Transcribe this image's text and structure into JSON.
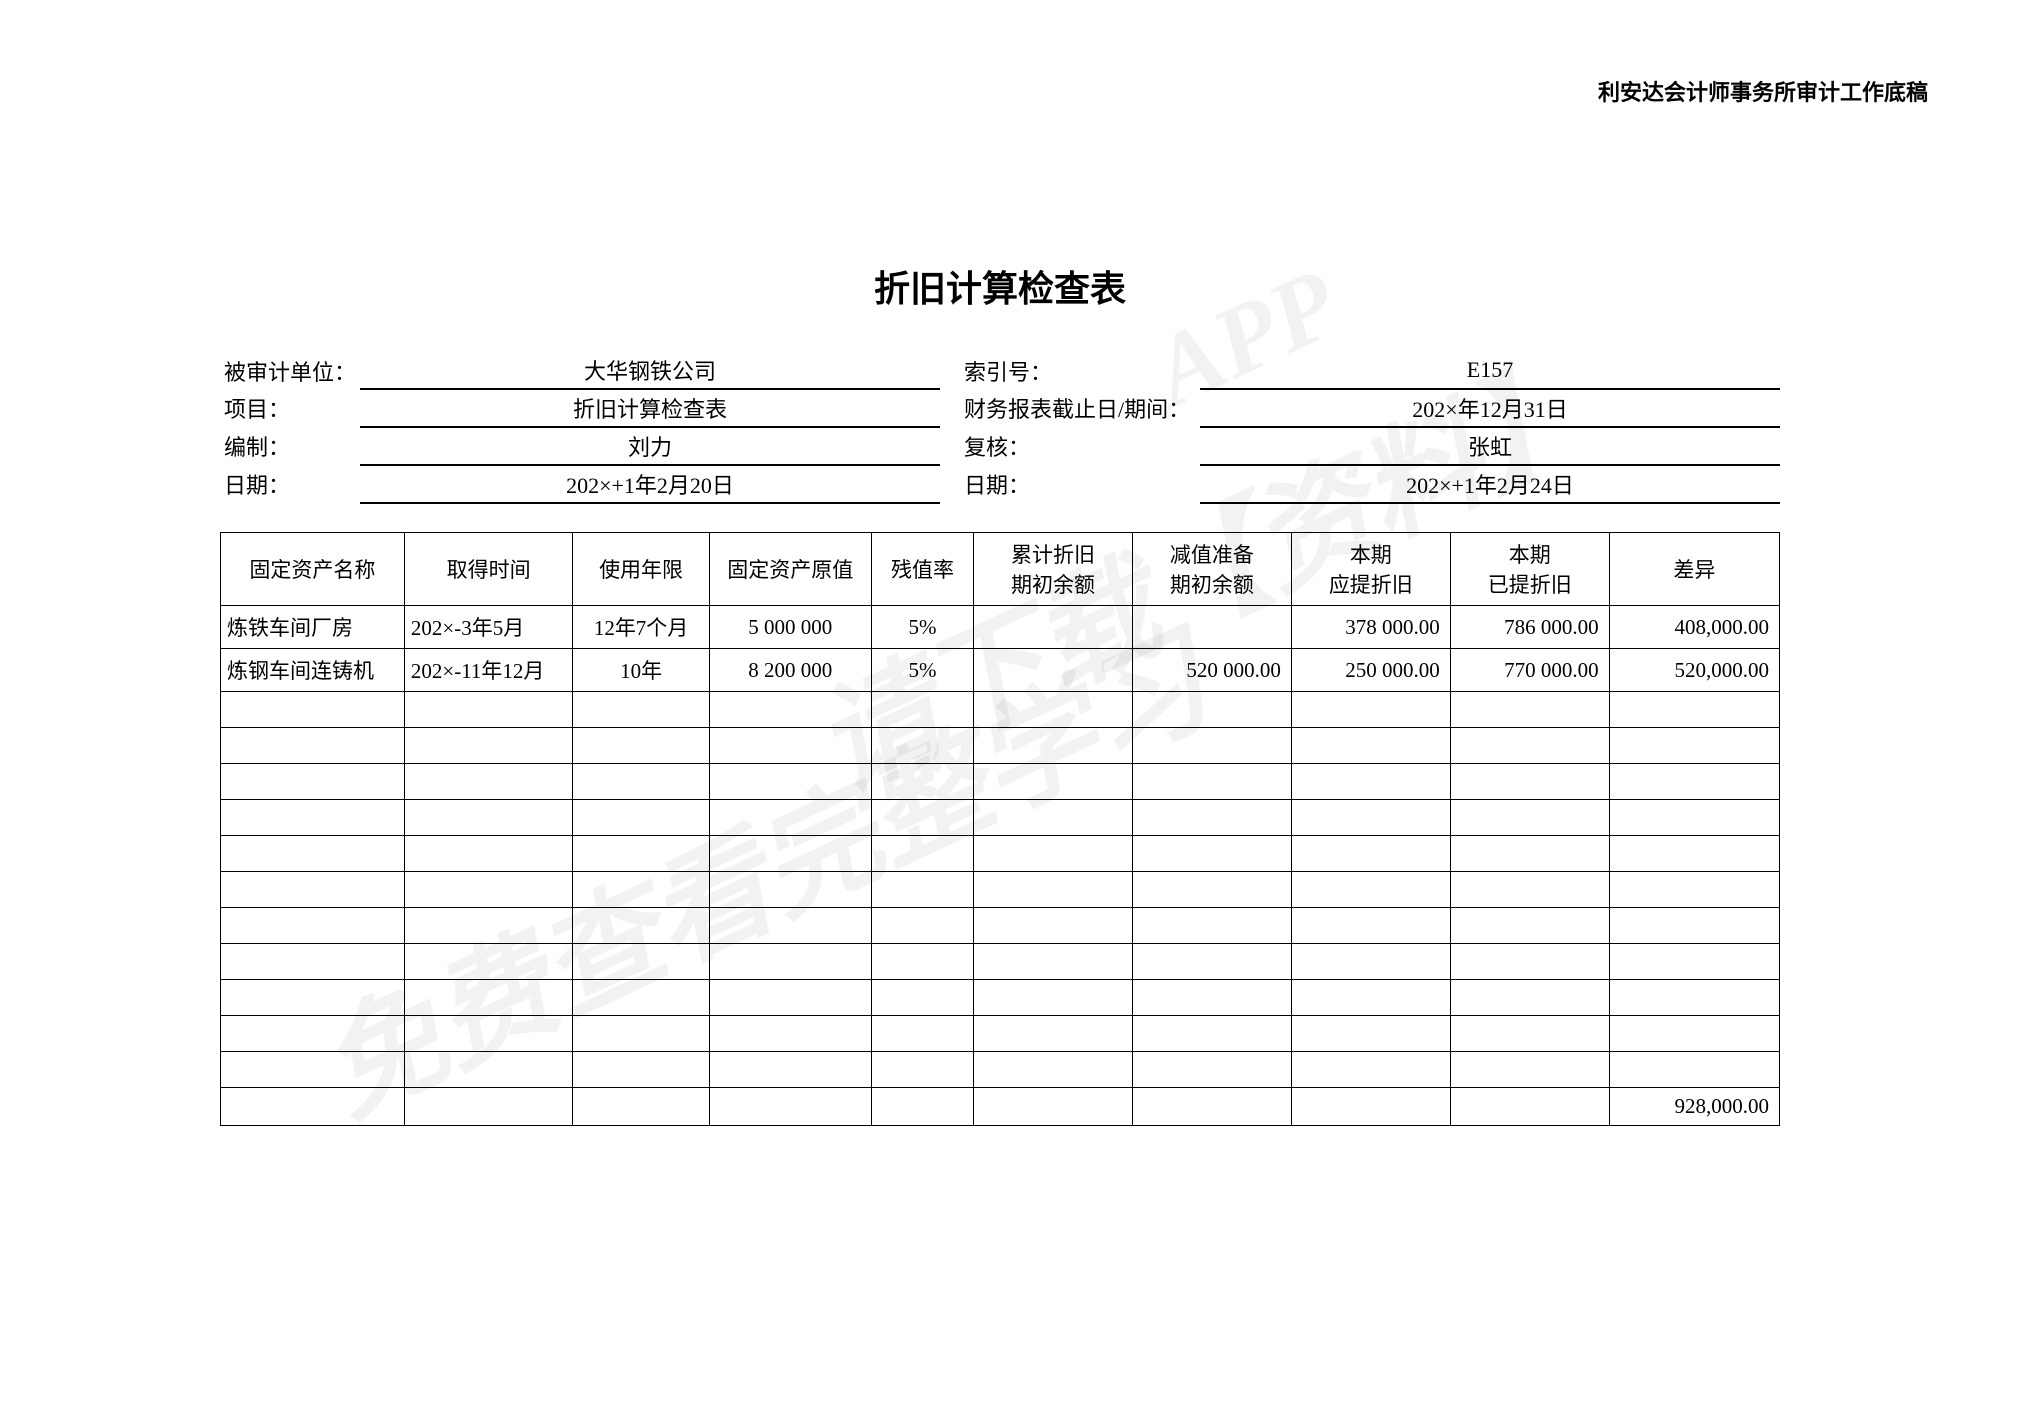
{
  "header_right": "利安达会计师事务所审计工作底稿",
  "title": "折旧计算检查表",
  "meta": {
    "rows": [
      {
        "l_label": "被审计单位：",
        "l_value": "大华钢铁公司",
        "r_label": "索引号：",
        "r_value": "E157"
      },
      {
        "l_label": "项目：",
        "l_value": "折旧计算检查表",
        "r_label": "财务报表截止日/期间：",
        "r_value": "202×年12月31日"
      },
      {
        "l_label": "编制：",
        "l_value": "刘力",
        "r_label": "复核：",
        "r_value": "张虹"
      },
      {
        "l_label": "日期：",
        "l_value": "202×+1年2月20日",
        "r_label": "日期：",
        "r_value": "202×+1年2月24日"
      }
    ]
  },
  "table": {
    "columns": [
      "固定资产名称",
      "取得时间",
      "使用年限",
      "固定资产原值",
      "残值率",
      "累计折旧\n期初余额",
      "减值准备\n期初余额",
      "本期\n应提折旧",
      "本期\n已提折旧",
      "差异"
    ],
    "rows": [
      {
        "name": "炼铁车间厂房",
        "acq": "202×-3年5月",
        "life": "12年7个月",
        "cost": "5 000 000",
        "rate": "5%",
        "accdep": "",
        "impair": "",
        "should": "378 000.00",
        "actual": "786 000.00",
        "diff": "408,000.00"
      },
      {
        "name": "炼钢车间连铸机",
        "acq": "202×-11年12月",
        "life": "10年",
        "cost": "8 200 000",
        "rate": "5%",
        "accdep": "",
        "impair": "520 000.00",
        "should": "250 000.00",
        "actual": "770 000.00",
        "diff": "520,000.00"
      },
      {
        "name": "",
        "acq": "",
        "life": "",
        "cost": "",
        "rate": "",
        "accdep": "",
        "impair": "",
        "should": "",
        "actual": "",
        "diff": ""
      },
      {
        "name": "",
        "acq": "",
        "life": "",
        "cost": "",
        "rate": "",
        "accdep": "",
        "impair": "",
        "should": "",
        "actual": "",
        "diff": ""
      },
      {
        "name": "",
        "acq": "",
        "life": "",
        "cost": "",
        "rate": "",
        "accdep": "",
        "impair": "",
        "should": "",
        "actual": "",
        "diff": ""
      },
      {
        "name": "",
        "acq": "",
        "life": "",
        "cost": "",
        "rate": "",
        "accdep": "",
        "impair": "",
        "should": "",
        "actual": "",
        "diff": ""
      },
      {
        "name": "",
        "acq": "",
        "life": "",
        "cost": "",
        "rate": "",
        "accdep": "",
        "impair": "",
        "should": "",
        "actual": "",
        "diff": ""
      },
      {
        "name": "",
        "acq": "",
        "life": "",
        "cost": "",
        "rate": "",
        "accdep": "",
        "impair": "",
        "should": "",
        "actual": "",
        "diff": ""
      },
      {
        "name": "",
        "acq": "",
        "life": "",
        "cost": "",
        "rate": "",
        "accdep": "",
        "impair": "",
        "should": "",
        "actual": "",
        "diff": ""
      },
      {
        "name": "",
        "acq": "",
        "life": "",
        "cost": "",
        "rate": "",
        "accdep": "",
        "impair": "",
        "should": "",
        "actual": "",
        "diff": ""
      },
      {
        "name": "",
        "acq": "",
        "life": "",
        "cost": "",
        "rate": "",
        "accdep": "",
        "impair": "",
        "should": "",
        "actual": "",
        "diff": ""
      },
      {
        "name": "",
        "acq": "",
        "life": "",
        "cost": "",
        "rate": "",
        "accdep": "",
        "impair": "",
        "should": "",
        "actual": "",
        "diff": ""
      },
      {
        "name": "",
        "acq": "",
        "life": "",
        "cost": "",
        "rate": "",
        "accdep": "",
        "impair": "",
        "should": "",
        "actual": "",
        "diff": ""
      },
      {
        "name": "",
        "acq": "",
        "life": "",
        "cost": "",
        "rate": "",
        "accdep": "",
        "impair": "",
        "should": "",
        "actual": "",
        "diff": "928,000.00"
      }
    ]
  },
  "watermarks": {
    "wm1": "免费查看完整学习",
    "wm2": "请下载【资料】",
    "wm3": "APP"
  }
}
